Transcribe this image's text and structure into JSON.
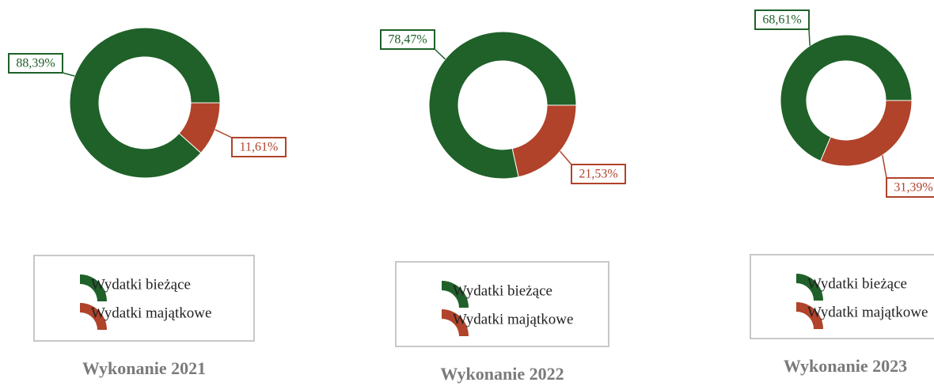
{
  "chart_data": [
    {
      "type": "pie",
      "title": "Wykonanie 2021",
      "categories": [
        "Wydatki bieżące",
        "Wydatki majątkowe"
      ],
      "values": [
        88.39,
        11.61
      ],
      "value_labels": [
        "88,39%",
        "11,61%"
      ],
      "colors": [
        "#1f6129",
        "#b0432a"
      ]
    },
    {
      "type": "pie",
      "title": "Wykonanie 2022",
      "categories": [
        "Wydatki bieżące",
        "Wydatki majątkowe"
      ],
      "values": [
        78.47,
        21.53
      ],
      "value_labels": [
        "78,47%",
        "21,53%"
      ],
      "colors": [
        "#1f6129",
        "#b0432a"
      ]
    },
    {
      "type": "pie",
      "title": "Wykonanie 2023",
      "categories": [
        "Wydatki bieżące",
        "Wydatki majątkowe"
      ],
      "values": [
        68.61,
        31.39
      ],
      "value_labels": [
        "68,61%",
        "31,39%"
      ],
      "colors": [
        "#1f6129",
        "#b0432a"
      ]
    }
  ]
}
